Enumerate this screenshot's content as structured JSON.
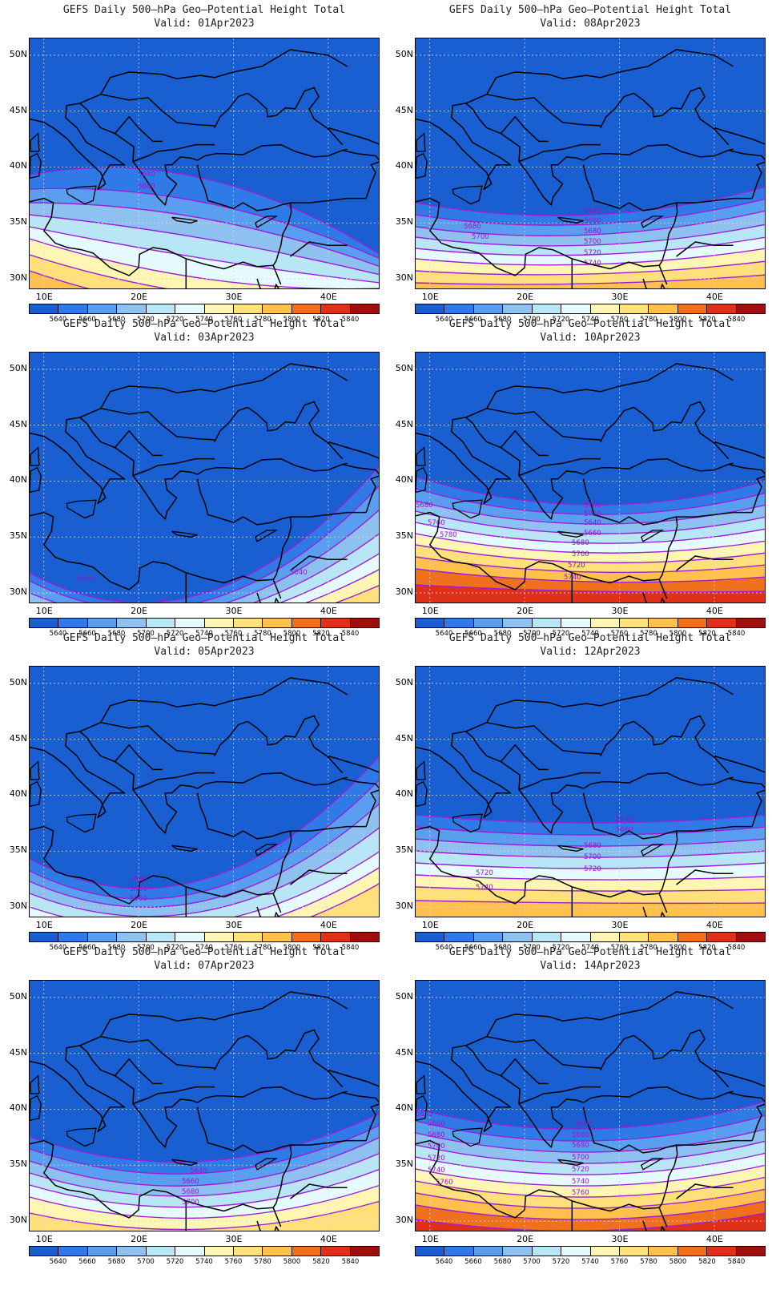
{
  "title_line": "GEFS Daily 500–hPa Geo–Potential Height Total",
  "lat_labels": [
    "50N",
    "45N",
    "40N",
    "35N",
    "30N"
  ],
  "lon_labels": [
    "10E",
    "20E",
    "30E",
    "40E"
  ],
  "colorbar": {
    "labels": [
      "5640",
      "5660",
      "5680",
      "5700",
      "5720",
      "5740",
      "5760",
      "5780",
      "5800",
      "5820",
      "5840"
    ],
    "colors": [
      "#1a5fd1",
      "#2f7ae6",
      "#5a9ef0",
      "#8fc1f0",
      "#b9e6f7",
      "#e6fbff",
      "#fff6b3",
      "#ffe07a",
      "#ffc04d",
      "#f0701e",
      "#e0301a",
      "#a00f0f"
    ]
  },
  "panels": [
    {
      "valid": "Valid: 01Apr2023",
      "contours": [
        "5640",
        "5660"
      ]
    },
    {
      "valid": "Valid: 08Apr2023",
      "contours": [
        "5640",
        "5660",
        "5680",
        "5700",
        "5720",
        "5740",
        "5680",
        "5700"
      ]
    },
    {
      "valid": "Valid: 03Apr2023",
      "contours": [
        "5640",
        "5640"
      ]
    },
    {
      "valid": "Valid: 10Apr2023",
      "contours": [
        "5680",
        "5700",
        "5720",
        "5640",
        "5660",
        "5680",
        "5700",
        "5720",
        "5740",
        "5760",
        "5780"
      ]
    },
    {
      "valid": "Valid: 05Apr2023",
      "contours": [
        "5640",
        "5660",
        "5680"
      ]
    },
    {
      "valid": "Valid: 12Apr2023",
      "contours": [
        "5640",
        "5660",
        "5680",
        "5700",
        "5720",
        "5720",
        "5740"
      ]
    },
    {
      "valid": "Valid: 07Apr2023",
      "contours": [
        "5640",
        "5660",
        "5680",
        "5700"
      ]
    },
    {
      "valid": "Valid: 14Apr2023",
      "contours": [
        "5640",
        "5660",
        "5680",
        "5700",
        "5720",
        "5740",
        "5760",
        "5640",
        "5660",
        "5680",
        "5700",
        "5720",
        "5740",
        "5760"
      ]
    }
  ]
}
